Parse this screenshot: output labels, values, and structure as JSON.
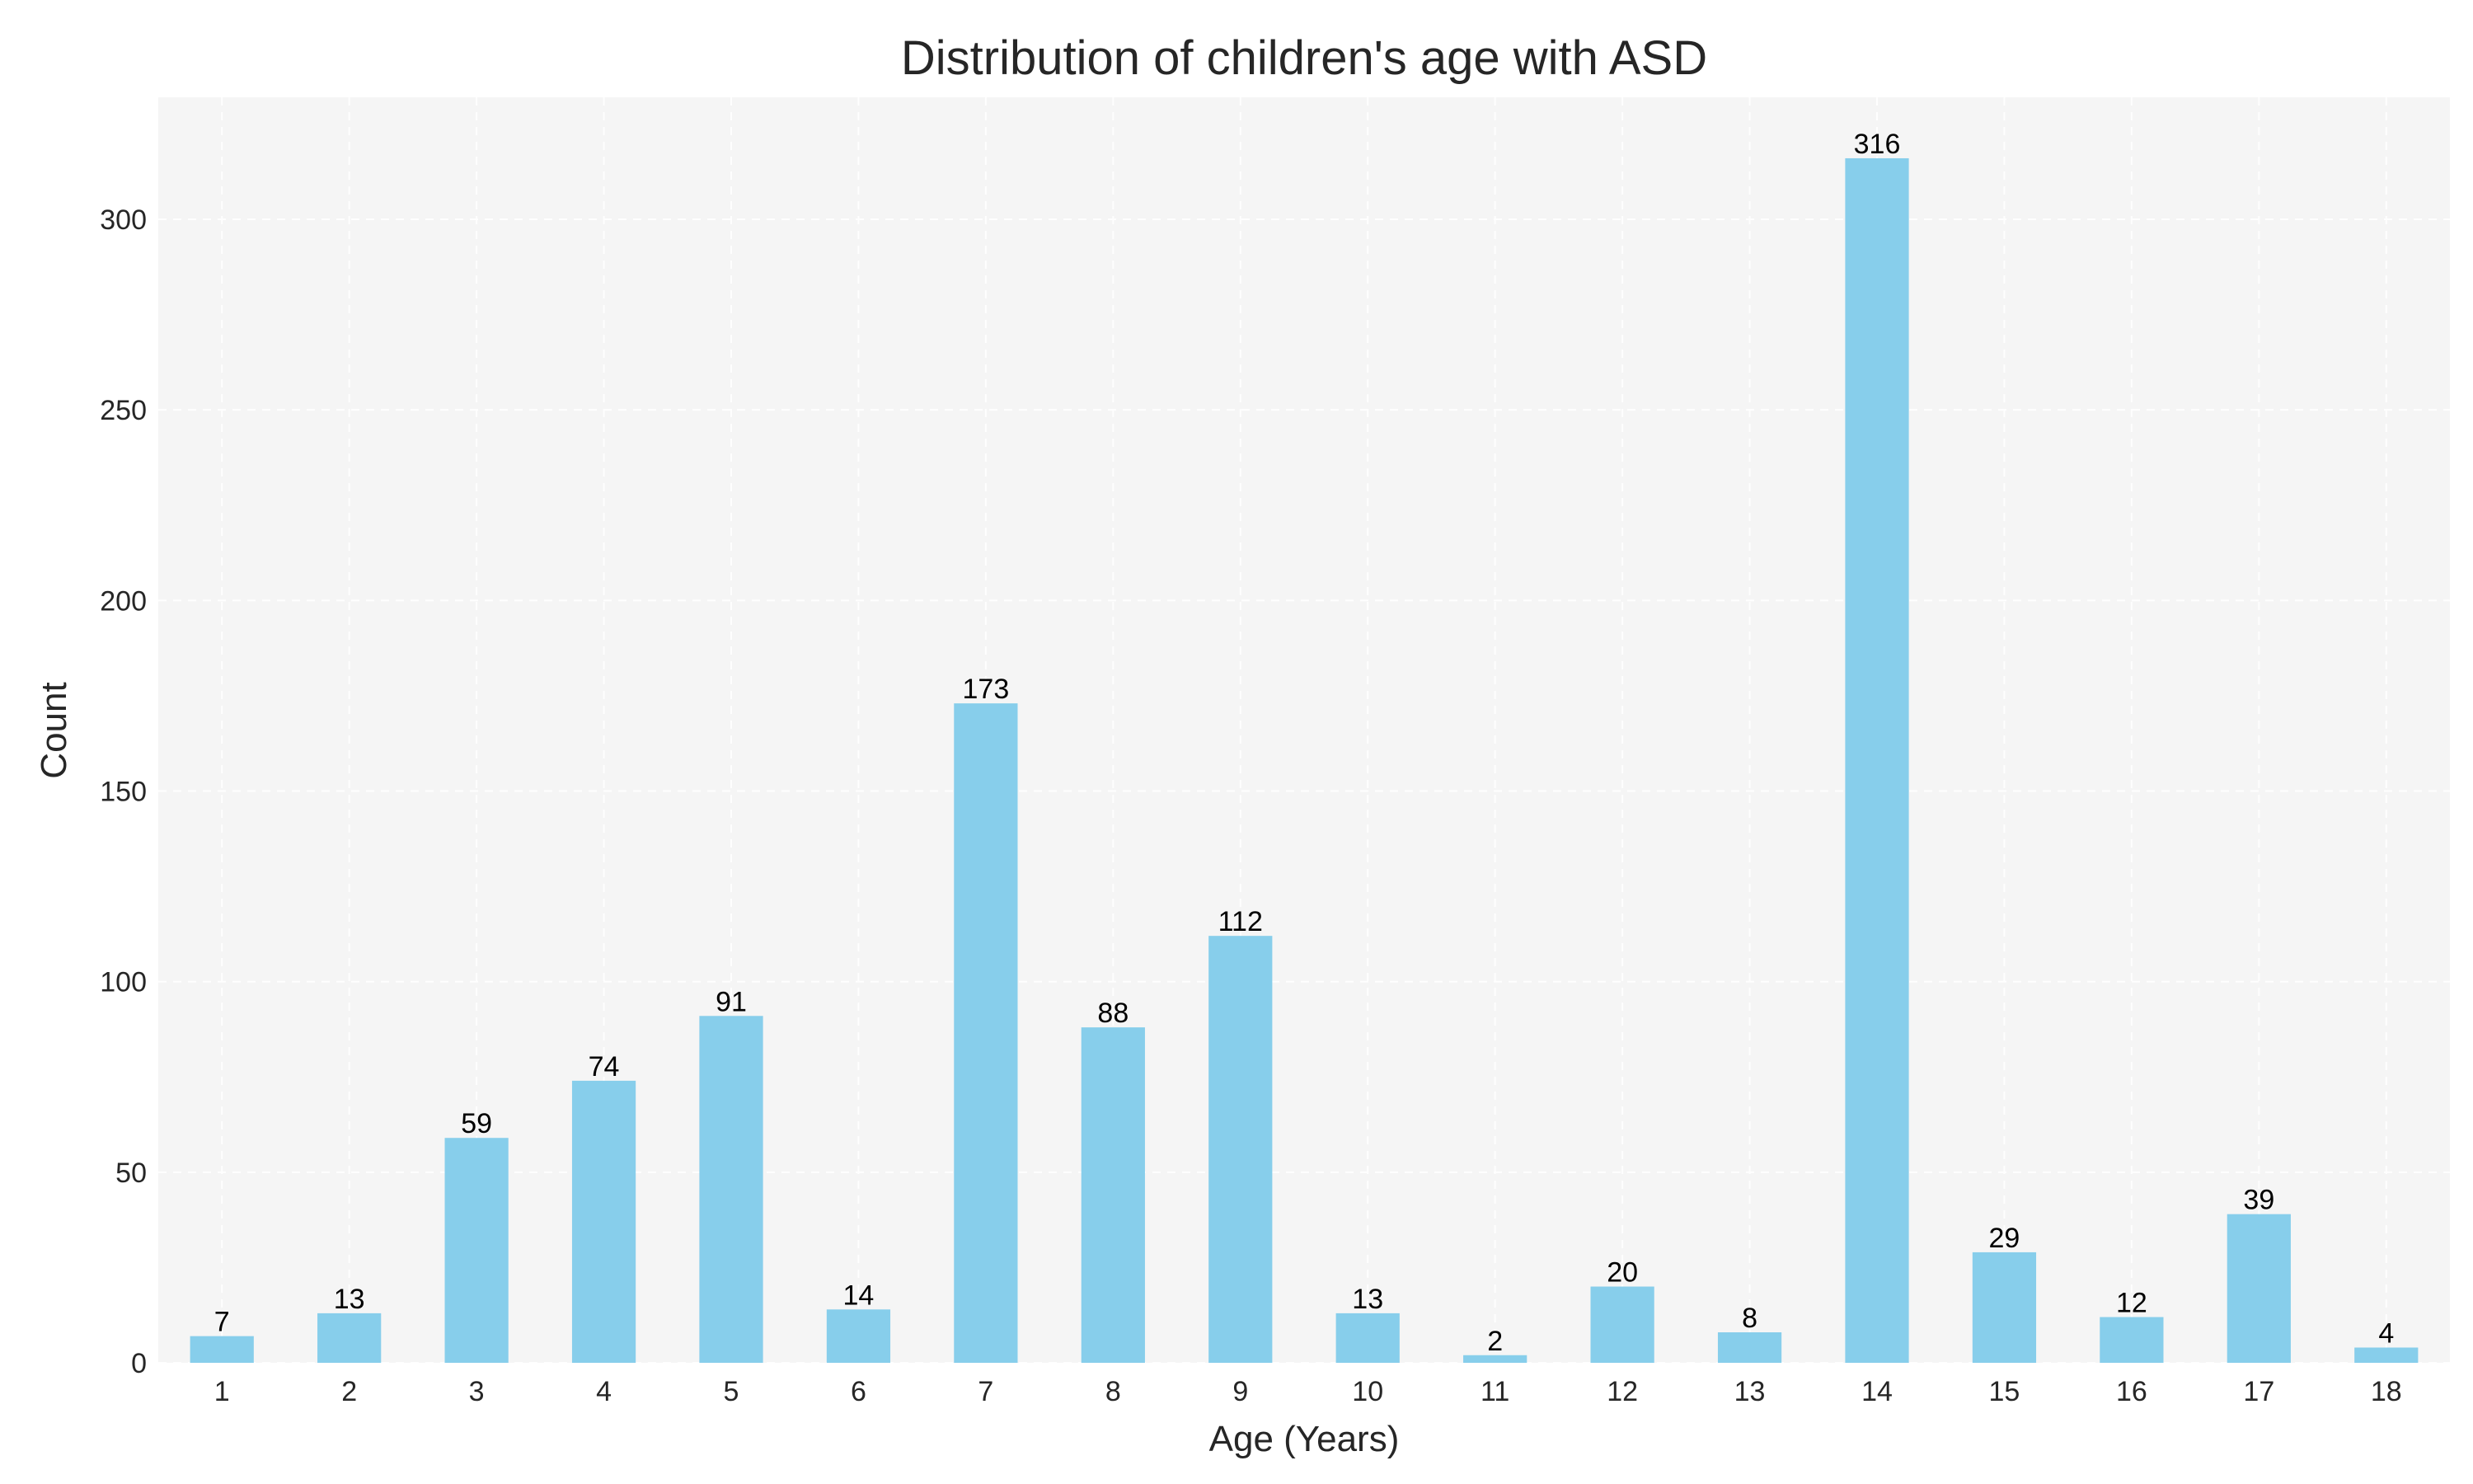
{
  "chart_data": {
    "type": "bar",
    "title": "Distribution of children's age with ASD",
    "xlabel": "Age (Years)",
    "ylabel": "Count",
    "categories": [
      "1",
      "2",
      "3",
      "4",
      "5",
      "6",
      "7",
      "8",
      "9",
      "10",
      "11",
      "12",
      "13",
      "14",
      "15",
      "16",
      "17",
      "18"
    ],
    "values": [
      7,
      13,
      59,
      74,
      91,
      14,
      173,
      88,
      112,
      13,
      2,
      20,
      8,
      316,
      29,
      12,
      39,
      4
    ],
    "ylim": [
      0,
      332
    ],
    "yticks": [
      0,
      50,
      100,
      150,
      200,
      250,
      300
    ],
    "grid": true,
    "legend": "none",
    "bar_color": "#87CEEB",
    "plot_background": "#f5f5f5"
  }
}
